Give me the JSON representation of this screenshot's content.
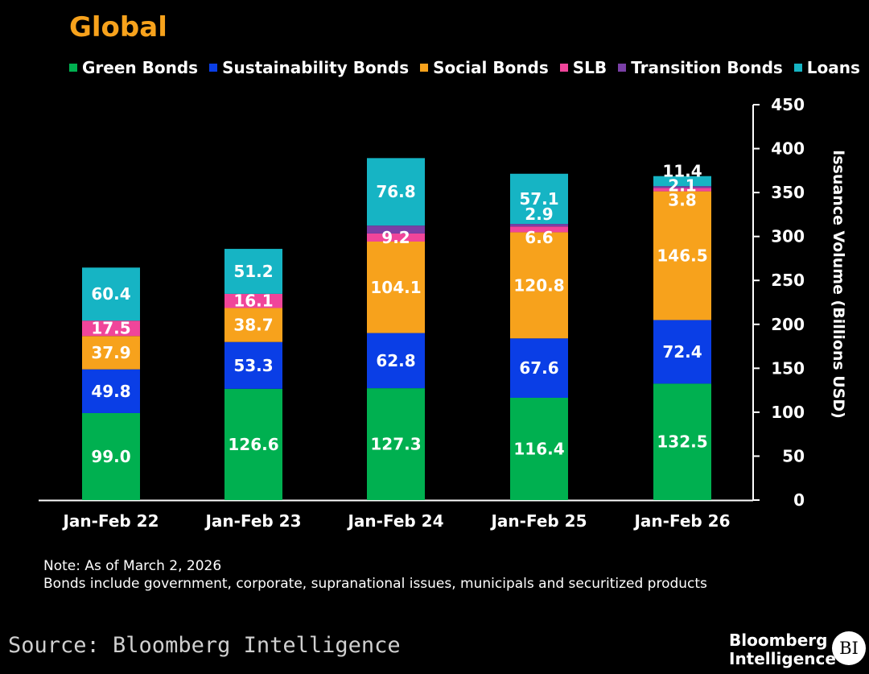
{
  "chart_data": {
    "type": "bar",
    "stacked": true,
    "title": "Global",
    "ylabel": "Issuance Volume (Billions USD)",
    "xlabel": "",
    "ylim": [
      0,
      450
    ],
    "yticks": [
      "450",
      "400",
      "350",
      "300",
      "250",
      "200",
      "150",
      "100",
      "50",
      "0"
    ],
    "y_axis_position": "right",
    "legend_position": "top",
    "grid": false,
    "categories": [
      "Jan-Feb 22",
      "Jan-Feb 23",
      "Jan-Feb 24",
      "Jan-Feb 25",
      "Jan-Feb 26"
    ],
    "series": [
      {
        "name": "Green Bonds",
        "color": "#00b050",
        "values": [
          99.0,
          126.6,
          127.3,
          116.4,
          132.5
        ],
        "labels": [
          "99.0",
          "126.6",
          "127.3",
          "116.4",
          "132.5"
        ]
      },
      {
        "name": "Sustainability Bonds",
        "color": "#0a3ee6",
        "values": [
          49.8,
          53.3,
          62.8,
          67.6,
          72.4
        ],
        "labels": [
          "49.8",
          "53.3",
          "62.8",
          "67.6",
          "72.4"
        ]
      },
      {
        "name": "Social Bonds",
        "color": "#f7a21c",
        "values": [
          37.9,
          38.7,
          104.1,
          120.8,
          146.5
        ],
        "labels": [
          "37.9",
          "38.7",
          "104.1",
          "120.8",
          "146.5"
        ]
      },
      {
        "name": "SLB",
        "color": "#f0459a",
        "values": [
          17.5,
          16.1,
          9.2,
          6.6,
          3.8
        ],
        "labels": [
          "17.5",
          "16.1",
          "9.2",
          "6.6",
          "3.8"
        ]
      },
      {
        "name": "Transition Bonds",
        "color": "#7a3fa6",
        "values": [
          0,
          0,
          9.0,
          2.9,
          2.1
        ],
        "labels": [
          "",
          "",
          "",
          "2.9",
          "2.1"
        ]
      },
      {
        "name": "Loans",
        "color": "#16b4c4",
        "values": [
          60.4,
          51.2,
          76.8,
          57.1,
          11.4
        ],
        "labels": [
          "60.4",
          "51.2",
          "76.8",
          "57.1",
          "11.4"
        ]
      }
    ]
  },
  "note": {
    "line1": "Note: As of March 2, 2026",
    "line2": "Bonds include government, corporate, supranational issues, municipals and securitized products"
  },
  "footer": {
    "source": "Source: Bloomberg Intelligence",
    "brand_line1": "Bloomberg",
    "brand_line2": "Intelligence",
    "badge": "BI"
  }
}
